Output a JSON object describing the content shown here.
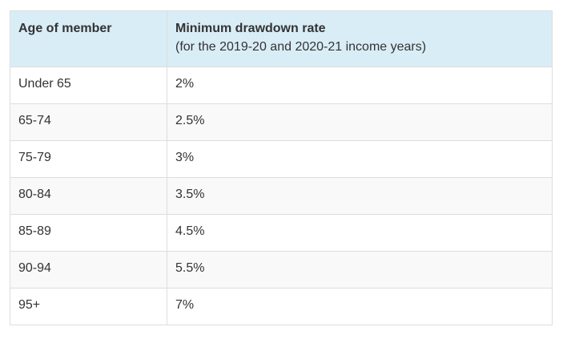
{
  "table": {
    "headers": {
      "age": "Age of member",
      "rate": "Minimum drawdown rate",
      "rate_sub": "(for the 2019-20 and 2020-21 income years)"
    },
    "rows": [
      {
        "age": "Under 65",
        "rate": "2%"
      },
      {
        "age": "65-74",
        "rate": "2.5%"
      },
      {
        "age": "75-79",
        "rate": "3%"
      },
      {
        "age": "80-84",
        "rate": "3.5%"
      },
      {
        "age": "85-89",
        "rate": "4.5%"
      },
      {
        "age": "90-94",
        "rate": "5.5%"
      },
      {
        "age": "95+",
        "rate": "7%"
      }
    ]
  }
}
